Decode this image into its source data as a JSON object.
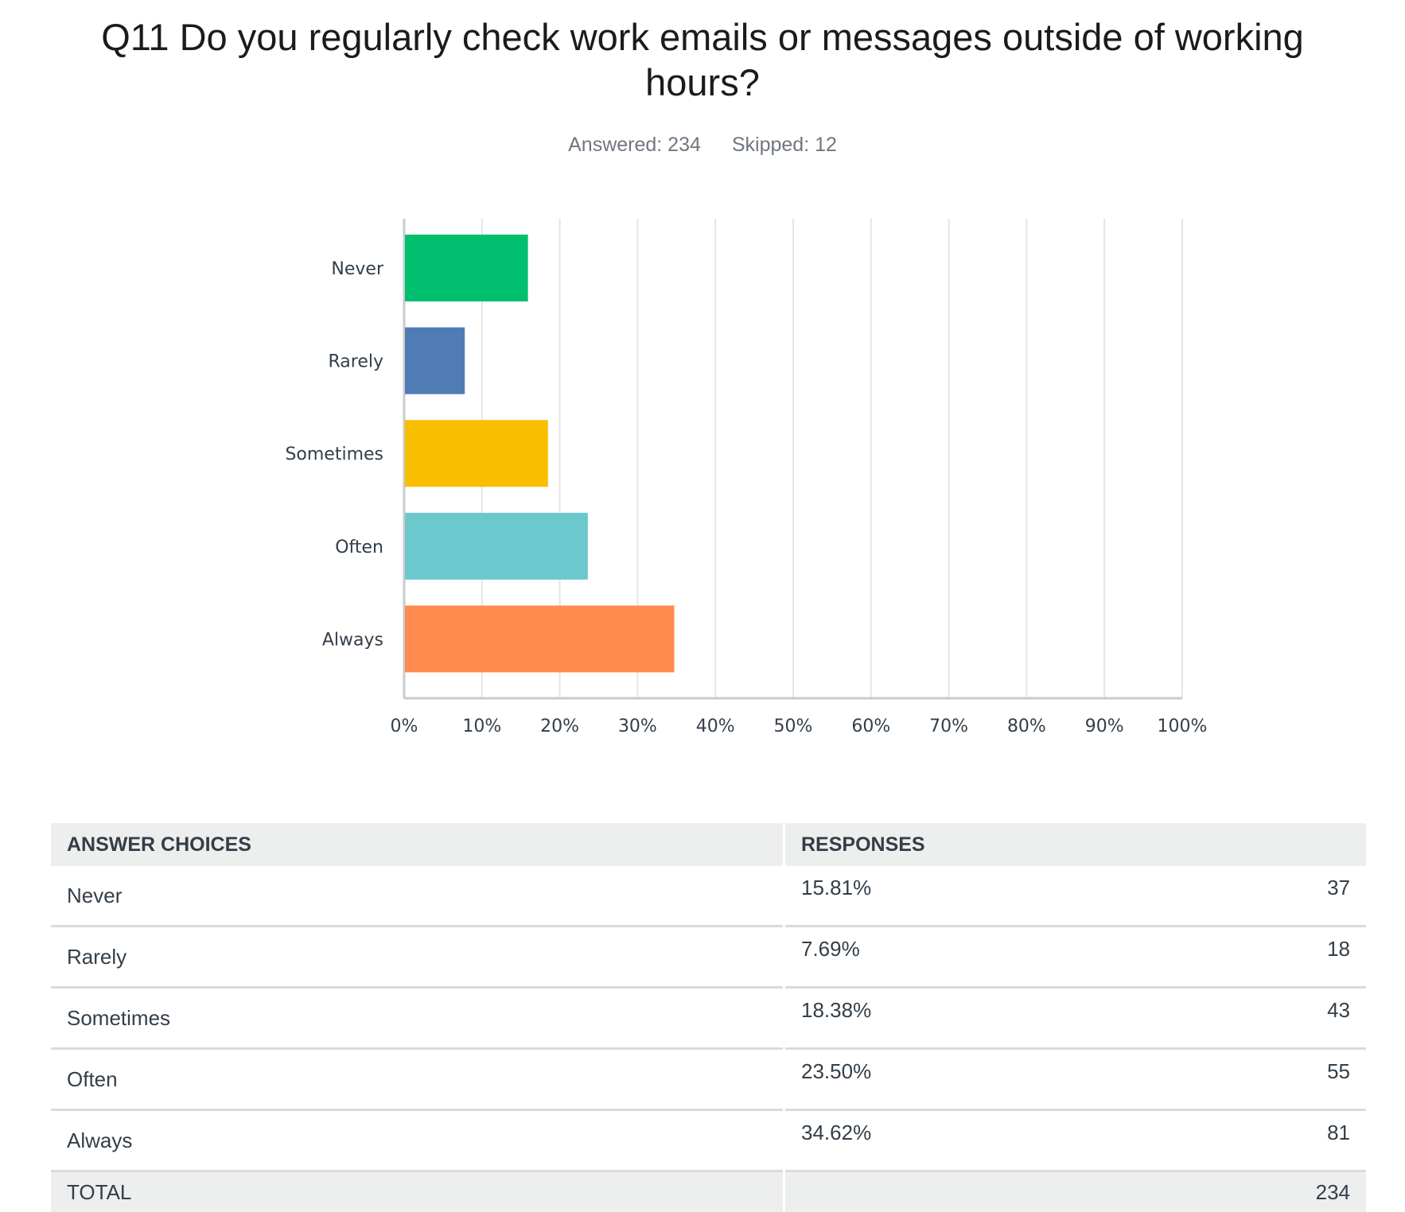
{
  "title": "Q11 Do you regularly check work emails or messages outside of working hours?",
  "answered": "Answered: 234",
  "skipped": "Skipped: 12",
  "colors": [
    "#00bf6f",
    "#507cb6",
    "#f9be00",
    "#6bc8cd",
    "#ff8b4f"
  ],
  "chart_data": {
    "type": "bar",
    "orientation": "horizontal",
    "categories": [
      "Never",
      "Rarely",
      "Sometimes",
      "Often",
      "Always"
    ],
    "values": [
      15.81,
      7.69,
      18.38,
      23.5,
      34.62
    ],
    "xlim": [
      0,
      100
    ],
    "ticks": [
      "0%",
      "10%",
      "20%",
      "30%",
      "40%",
      "50%",
      "60%",
      "70%",
      "80%",
      "90%",
      "100%"
    ],
    "grid": true
  },
  "table": {
    "headers": [
      "ANSWER CHOICES",
      "RESPONSES"
    ],
    "rows": [
      {
        "choice": "Never",
        "percent": "15.81%",
        "count": "37"
      },
      {
        "choice": "Rarely",
        "percent": "7.69%",
        "count": "18"
      },
      {
        "choice": "Sometimes",
        "percent": "18.38%",
        "count": "43"
      },
      {
        "choice": "Often",
        "percent": "23.50%",
        "count": "55"
      },
      {
        "choice": "Always",
        "percent": "34.62%",
        "count": "81"
      }
    ],
    "total_label": "TOTAL",
    "total_count": "234"
  }
}
